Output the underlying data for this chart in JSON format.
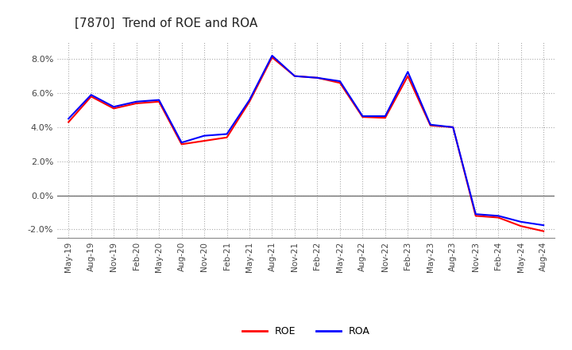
{
  "title": "[7870]  Trend of ROE and ROA",
  "title_fontsize": 11,
  "background_color": "#ffffff",
  "plot_bg_color": "#ffffff",
  "grid_color": "#aaaaaa",
  "labels": [
    "May-19",
    "Aug-19",
    "Nov-19",
    "Feb-20",
    "May-20",
    "Aug-20",
    "Nov-20",
    "Feb-21",
    "May-21",
    "Aug-21",
    "Nov-21",
    "Feb-22",
    "May-22",
    "Aug-22",
    "Nov-22",
    "Feb-23",
    "May-23",
    "Aug-23",
    "Nov-23",
    "Feb-24",
    "May-24",
    "Aug-24"
  ],
  "ROE": [
    4.3,
    5.8,
    5.1,
    5.4,
    5.5,
    3.0,
    3.2,
    3.4,
    5.5,
    8.1,
    7.0,
    6.9,
    6.6,
    4.6,
    4.55,
    7.0,
    4.1,
    4.0,
    -1.2,
    -1.3,
    -1.8,
    -2.1
  ],
  "ROA": [
    4.5,
    5.9,
    5.2,
    5.5,
    5.6,
    3.1,
    3.5,
    3.6,
    5.6,
    8.2,
    7.0,
    6.9,
    6.7,
    4.65,
    4.65,
    7.25,
    4.15,
    4.0,
    -1.1,
    -1.2,
    -1.55,
    -1.75
  ],
  "roe_color": "#ff0000",
  "roa_color": "#0000ff",
  "line_width": 1.5,
  "ylim": [
    -2.5,
    9.0
  ],
  "yticks": [
    -2.0,
    0.0,
    2.0,
    4.0,
    6.0,
    8.0
  ],
  "legend_labels": [
    "ROE",
    "ROA"
  ],
  "legend_colors": [
    "#ff0000",
    "#0000ff"
  ]
}
